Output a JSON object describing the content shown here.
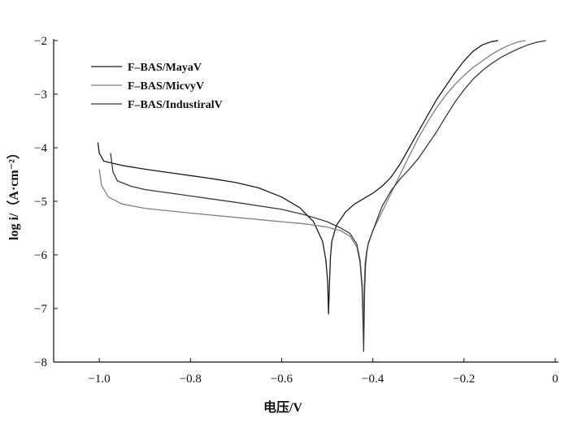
{
  "chart_data": {
    "type": "line",
    "xlabel": "电压/V",
    "ylabel": "log i/（A·cm⁻²）",
    "xlim": [
      -1.1,
      0
    ],
    "ylim": [
      -8,
      -2
    ],
    "xticks": [
      -1.0,
      -0.8,
      -0.6,
      -0.4,
      -0.2,
      0
    ],
    "xtick_labels": [
      "−1.0",
      "−0.8",
      "−0.6",
      "−0.4",
      "−0.2",
      "0"
    ],
    "yticks": [
      -8,
      -7,
      -6,
      -5,
      -4,
      -3,
      -2
    ],
    "ytick_labels": [
      "−8",
      "−7",
      "−6",
      "−5",
      "−4",
      "−3",
      "−2"
    ],
    "grid": false,
    "legend_position": "top-left",
    "series": [
      {
        "name": "F–BAS/MayaV",
        "color": "#1a1a1a",
        "x": [
          -1.003,
          -1.0,
          -0.99,
          -0.95,
          -0.9,
          -0.85,
          -0.8,
          -0.75,
          -0.7,
          -0.65,
          -0.6,
          -0.56,
          -0.53,
          -0.51,
          -0.503,
          -0.499,
          -0.497,
          -0.495,
          -0.493,
          -0.49,
          -0.48,
          -0.46,
          -0.44,
          -0.42,
          -0.4,
          -0.38,
          -0.36,
          -0.34,
          -0.32,
          -0.3,
          -0.28,
          -0.26,
          -0.24,
          -0.22,
          -0.2,
          -0.18,
          -0.16,
          -0.14,
          -0.125
        ],
        "y": [
          -3.9,
          -4.1,
          -4.25,
          -4.33,
          -4.4,
          -4.46,
          -4.52,
          -4.58,
          -4.65,
          -4.75,
          -4.92,
          -5.12,
          -5.38,
          -5.75,
          -6.1,
          -6.5,
          -7.1,
          -6.5,
          -6.05,
          -5.75,
          -5.45,
          -5.2,
          -5.05,
          -4.95,
          -4.85,
          -4.72,
          -4.55,
          -4.3,
          -4.0,
          -3.7,
          -3.4,
          -3.1,
          -2.85,
          -2.6,
          -2.38,
          -2.2,
          -2.08,
          -2.02,
          -2.0
        ]
      },
      {
        "name": "F–BAS/MicvyV",
        "color": "#7f7f7f",
        "x": [
          -1.0,
          -0.995,
          -0.98,
          -0.95,
          -0.9,
          -0.8,
          -0.7,
          -0.6,
          -0.55,
          -0.5,
          -0.47,
          -0.45,
          -0.435,
          -0.428,
          -0.424,
          -0.421,
          -0.419,
          -0.417,
          -0.414,
          -0.41,
          -0.4,
          -0.38,
          -0.36,
          -0.34,
          -0.32,
          -0.3,
          -0.28,
          -0.26,
          -0.24,
          -0.22,
          -0.2,
          -0.18,
          -0.16,
          -0.14,
          -0.12,
          -0.1,
          -0.08,
          -0.065
        ],
        "y": [
          -4.4,
          -4.7,
          -4.92,
          -5.05,
          -5.13,
          -5.22,
          -5.3,
          -5.38,
          -5.42,
          -5.48,
          -5.55,
          -5.65,
          -5.85,
          -6.15,
          -6.6,
          -7.4,
          -6.6,
          -6.15,
          -5.95,
          -5.78,
          -5.55,
          -5.2,
          -4.85,
          -4.5,
          -4.15,
          -3.82,
          -3.52,
          -3.25,
          -3.02,
          -2.82,
          -2.65,
          -2.5,
          -2.38,
          -2.26,
          -2.16,
          -2.08,
          -2.02,
          -2.0
        ]
      },
      {
        "name": "F–BAS/IndustiralV",
        "color": "#3a3a3a",
        "x": [
          -0.975,
          -0.97,
          -0.96,
          -0.93,
          -0.9,
          -0.8,
          -0.7,
          -0.6,
          -0.55,
          -0.5,
          -0.47,
          -0.45,
          -0.435,
          -0.428,
          -0.423,
          -0.42,
          -0.418,
          -0.416,
          -0.413,
          -0.41,
          -0.4,
          -0.38,
          -0.36,
          -0.34,
          -0.32,
          -0.3,
          -0.28,
          -0.26,
          -0.24,
          -0.22,
          -0.2,
          -0.18,
          -0.16,
          -0.14,
          -0.12,
          -0.1,
          -0.08,
          -0.06,
          -0.04,
          -0.02
        ],
        "y": [
          -4.1,
          -4.45,
          -4.62,
          -4.72,
          -4.78,
          -4.9,
          -5.02,
          -5.15,
          -5.25,
          -5.38,
          -5.5,
          -5.6,
          -5.8,
          -6.1,
          -6.6,
          -7.8,
          -6.7,
          -6.2,
          -5.95,
          -5.8,
          -5.55,
          -5.1,
          -4.8,
          -4.58,
          -4.4,
          -4.2,
          -3.95,
          -3.7,
          -3.42,
          -3.15,
          -2.92,
          -2.72,
          -2.56,
          -2.43,
          -2.32,
          -2.23,
          -2.15,
          -2.08,
          -2.03,
          -2.0
        ]
      }
    ]
  }
}
